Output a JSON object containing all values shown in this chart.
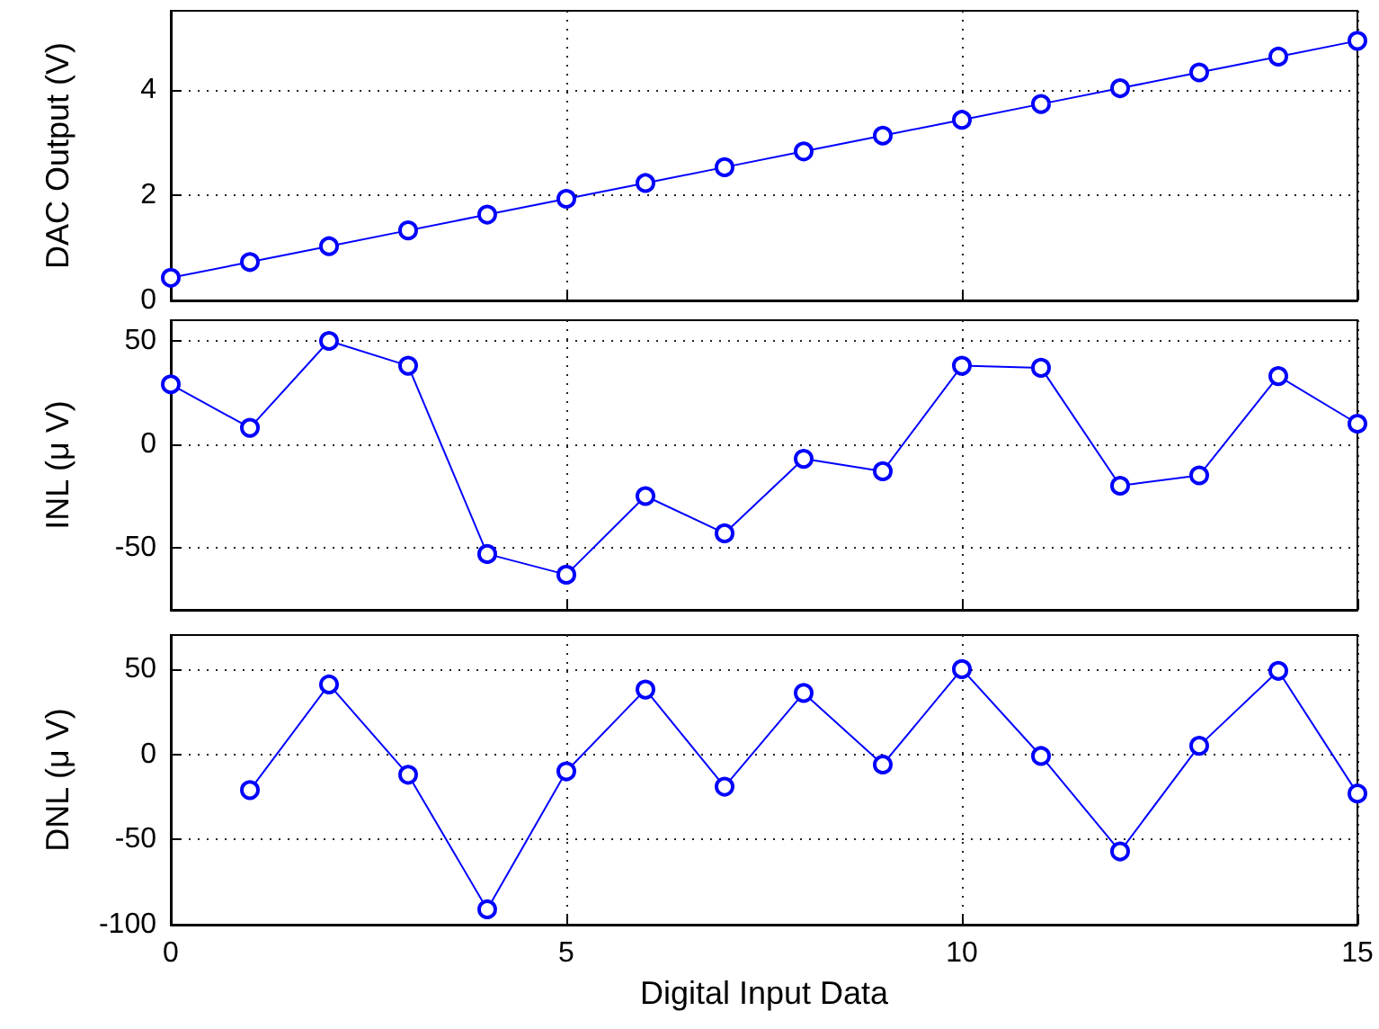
{
  "chart_data": [
    {
      "type": "line",
      "ylabel": "DAC Output (V)",
      "x": [
        0,
        1,
        2,
        3,
        4,
        5,
        6,
        7,
        8,
        9,
        10,
        11,
        12,
        13,
        14,
        15
      ],
      "xlim": [
        0,
        15
      ],
      "xticks": [
        0,
        5,
        10,
        15
      ],
      "ylim": [
        0,
        5.5
      ],
      "yticks": [
        0,
        2,
        4
      ],
      "tick_labels": "y",
      "grid": true,
      "marker": "circle",
      "line_style": "solid",
      "series": [
        {
          "color": "#0000ff",
          "values": [
            0.43,
            0.73,
            1.03,
            1.33,
            1.63,
            1.93,
            2.23,
            2.53,
            2.83,
            3.13,
            3.43,
            3.73,
            4.03,
            4.33,
            4.63,
            4.93
          ]
        }
      ]
    },
    {
      "type": "line",
      "ylabel": "INL (μ V)",
      "x": [
        0,
        1,
        2,
        3,
        4,
        5,
        6,
        7,
        8,
        9,
        10,
        11,
        12,
        13,
        14,
        15
      ],
      "xlim": [
        0,
        15
      ],
      "xticks": [
        0,
        5,
        10,
        15
      ],
      "ylim": [
        -80,
        60
      ],
      "yticks": [
        -50,
        0,
        50
      ],
      "tick_labels": "y",
      "grid": true,
      "marker": "circle",
      "line_style": "solid",
      "series": [
        {
          "color": "#0000ff",
          "values": [
            29,
            8,
            50,
            38,
            -53,
            -63,
            -25,
            -43,
            -7,
            -13,
            38,
            37,
            -20,
            -15,
            33,
            10
          ]
        }
      ]
    },
    {
      "type": "line",
      "xlabel": "Digital Input Data",
      "ylabel": "DNL (μ V)",
      "xlim": [
        0,
        15
      ],
      "xticks": [
        0,
        5,
        10,
        15
      ],
      "ylim": [
        -100,
        70
      ],
      "yticks": [
        -100,
        -50,
        0,
        50
      ],
      "grid": true,
      "marker": "circle",
      "line_style": "solid",
      "series": [
        {
          "color": "#0000ff",
          "x": [
            1,
            2,
            3,
            4,
            5,
            6,
            7,
            8,
            9,
            10,
            11,
            12,
            13,
            14,
            15
          ],
          "values": [
            -21,
            41,
            -12,
            -91,
            -10,
            38,
            -19,
            36,
            -6,
            50,
            -1,
            -57,
            5,
            49,
            -23
          ]
        }
      ]
    }
  ]
}
